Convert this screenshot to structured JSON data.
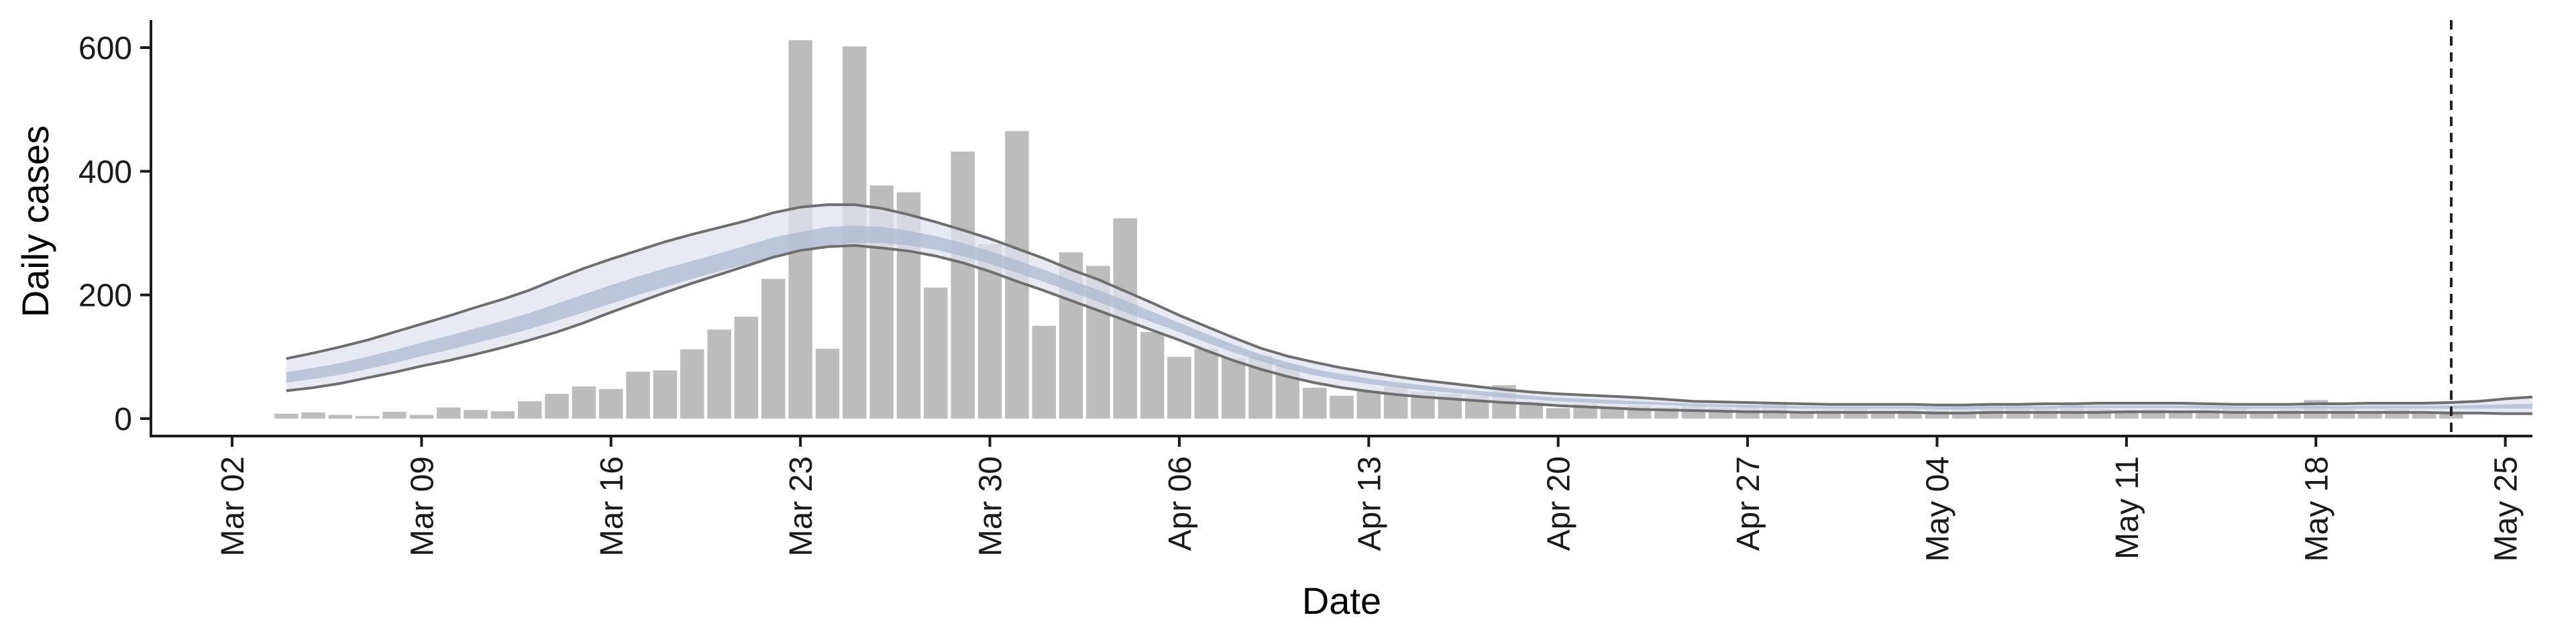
{
  "chart_data": {
    "type": "bar",
    "title": "",
    "xlabel": "Date",
    "ylabel": "Daily cases",
    "ylim": [
      0,
      640
    ],
    "y_ticks": [
      0,
      200,
      400,
      600
    ],
    "y_tick_labels": [
      "0",
      "200",
      "400",
      "600"
    ],
    "x_tick_labels": [
      "Mar 02",
      "Mar 09",
      "Mar 16",
      "Mar 23",
      "Mar 30",
      "Apr 06",
      "Apr 13",
      "Apr 20",
      "Apr 27",
      "May 04",
      "May 11",
      "May 18",
      "May 25"
    ],
    "x_range_dates": [
      "2020-02-28",
      "2020-05-26"
    ],
    "grid": false,
    "legend": "none",
    "reference_line_date": "2020-05-23",
    "colors": {
      "bars": "#bcbcbc",
      "band_outer": "#dfe3ee",
      "band_inner": "#a9b7d0",
      "outline": "#6e6e6e",
      "axis": "#1a1a1a"
    },
    "daily_cases": {
      "start_date": "2020-03-04",
      "values": [
        8,
        10,
        6,
        4,
        11,
        6,
        18,
        14,
        12,
        28,
        40,
        52,
        48,
        76,
        78,
        112,
        144,
        165,
        226,
        612,
        113,
        602,
        377,
        366,
        212,
        432,
        282,
        465,
        150,
        269,
        247,
        324,
        140,
        100,
        113,
        98,
        101,
        87,
        50,
        37,
        45,
        52,
        43,
        40,
        37,
        54,
        27,
        17,
        24,
        18,
        21,
        18,
        20,
        18,
        22,
        24,
        12,
        14,
        17,
        13,
        14,
        14,
        20,
        22,
        21,
        18,
        23,
        16,
        14,
        15,
        12,
        14,
        18,
        10,
        14,
        30,
        16,
        10,
        15,
        10,
        12
      ]
    },
    "estimate": {
      "start_date": "2020-03-04",
      "outer_upper": [
        97,
        106,
        116,
        127,
        140,
        153,
        166,
        180,
        193,
        208,
        226,
        243,
        258,
        272,
        286,
        298,
        309,
        320,
        333,
        342,
        346,
        346,
        340,
        330,
        318,
        305,
        291,
        275,
        259,
        241,
        225,
        206,
        187,
        167,
        149,
        131,
        114,
        101,
        91,
        82,
        75,
        68,
        62,
        57,
        52,
        47,
        43,
        40,
        38,
        36,
        34,
        31,
        28,
        27,
        26,
        25,
        24,
        23,
        23,
        23,
        23,
        22,
        22,
        23,
        23,
        24,
        24,
        25,
        25,
        25,
        25,
        24,
        23,
        23,
        23,
        24,
        24,
        25,
        25,
        25,
        26,
        28,
        32,
        35
      ],
      "inner_upper": [
        75,
        82,
        90,
        100,
        111,
        123,
        134,
        146,
        158,
        171,
        186,
        201,
        216,
        230,
        243,
        255,
        267,
        280,
        293,
        302,
        310,
        312,
        310,
        304,
        295,
        284,
        271,
        256,
        241,
        224,
        208,
        191,
        173,
        155,
        137,
        120,
        104,
        91,
        80,
        72,
        65,
        59,
        54,
        49,
        45,
        41,
        37,
        34,
        32,
        30,
        28,
        26,
        24,
        23,
        22,
        21,
        20,
        20,
        20,
        20,
        20,
        19,
        19,
        20,
        20,
        20,
        21,
        21,
        21,
        21,
        21,
        21,
        20,
        20,
        20,
        20,
        20,
        21,
        21,
        21,
        21,
        22,
        23,
        24
      ],
      "inner_lower": [
        58,
        64,
        71,
        80,
        90,
        101,
        111,
        122,
        133,
        145,
        158,
        172,
        186,
        200,
        213,
        226,
        238,
        250,
        262,
        272,
        280,
        284,
        284,
        280,
        273,
        263,
        250,
        236,
        221,
        205,
        189,
        172,
        156,
        140,
        123,
        107,
        93,
        80,
        70,
        62,
        56,
        51,
        46,
        42,
        38,
        34,
        31,
        28,
        26,
        24,
        23,
        22,
        20,
        19,
        18,
        17,
        16,
        16,
        16,
        16,
        16,
        15,
        15,
        16,
        16,
        16,
        17,
        17,
        17,
        17,
        17,
        16,
        16,
        16,
        16,
        16,
        16,
        16,
        16,
        16,
        16,
        16,
        16,
        16
      ],
      "outer_lower": [
        45,
        50,
        57,
        66,
        75,
        85,
        94,
        104,
        115,
        127,
        140,
        155,
        172,
        188,
        204,
        219,
        233,
        247,
        261,
        272,
        278,
        280,
        276,
        271,
        263,
        252,
        238,
        222,
        207,
        191,
        175,
        159,
        143,
        127,
        110,
        94,
        80,
        68,
        58,
        50,
        44,
        39,
        35,
        32,
        29,
        26,
        24,
        21,
        19,
        17,
        15,
        14,
        13,
        12,
        11,
        11,
        10,
        10,
        10,
        10,
        10,
        9,
        9,
        10,
        10,
        10,
        10,
        10,
        11,
        11,
        11,
        11,
        10,
        10,
        10,
        10,
        10,
        10,
        10,
        10,
        9,
        9,
        8,
        8
      ]
    }
  }
}
